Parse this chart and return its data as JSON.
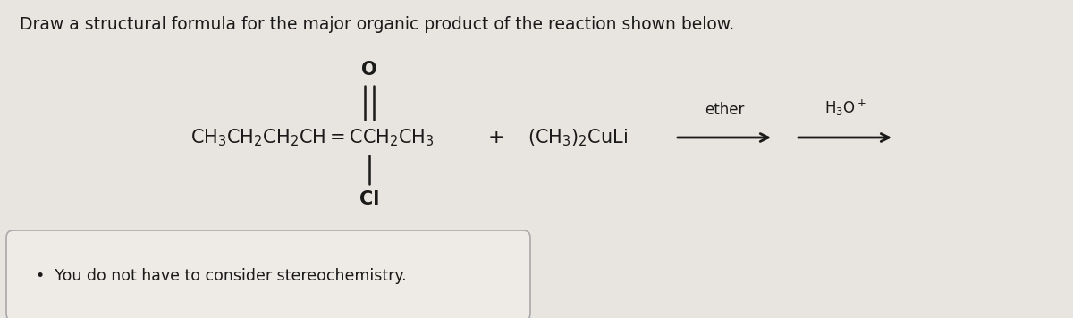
{
  "title": "Draw a structural formula for the major organic product of the reaction shown below.",
  "title_fontsize": 13.5,
  "bg_color": "#e8e4df",
  "box_bg": "#eeeae5",
  "molecule_left": "CH",
  "molecule_eq": "=",
  "reagent_text": "(CH₃)₂CuLi",
  "solvent": "ether",
  "workup": "H₃O",
  "note": "You do not have to consider stereochemistry.",
  "font_color": "#1a1a1a",
  "arrow_color": "#1a1a1a",
  "box_outline": "#aaaaaa",
  "fig_width": 12.0,
  "fig_height": 3.56,
  "dpi": 100
}
